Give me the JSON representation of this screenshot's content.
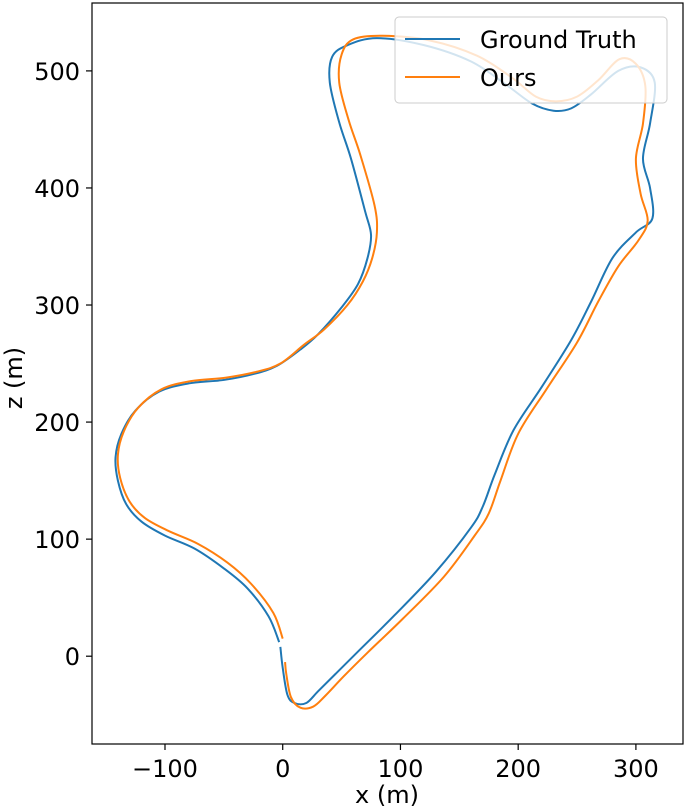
{
  "chart_data": {
    "type": "line",
    "title": "",
    "xlabel": "x (m)",
    "ylabel": "z (m)",
    "xlim": [
      -162,
      340
    ],
    "ylim": [
      -75,
      558
    ],
    "xticks": [
      -100,
      0,
      100,
      200,
      300
    ],
    "xtick_labels": [
      "−100",
      "0",
      "100",
      "200",
      "300"
    ],
    "yticks": [
      0,
      100,
      200,
      300,
      400,
      500
    ],
    "ytick_labels": [
      "0",
      "100",
      "200",
      "300",
      "400",
      "500"
    ],
    "grid": false,
    "legend": {
      "position": "top-right"
    },
    "series": [
      {
        "name": "Ground Truth",
        "color": "#1f77b4",
        "points": [
          [
            -2,
            8
          ],
          [
            0,
            -10
          ],
          [
            4,
            -33
          ],
          [
            10,
            -40
          ],
          [
            20,
            -40
          ],
          [
            30,
            -30
          ],
          [
            45,
            -15
          ],
          [
            65,
            5
          ],
          [
            95,
            35
          ],
          [
            130,
            72
          ],
          [
            160,
            110
          ],
          [
            170,
            128
          ],
          [
            180,
            155
          ],
          [
            196,
            193
          ],
          [
            220,
            230
          ],
          [
            245,
            270
          ],
          [
            262,
            303
          ],
          [
            280,
            340
          ],
          [
            300,
            362
          ],
          [
            314,
            374
          ],
          [
            312,
            400
          ],
          [
            306,
            425
          ],
          [
            312,
            455
          ],
          [
            316,
            490
          ],
          [
            304,
            503
          ],
          [
            285,
            500
          ],
          [
            262,
            480
          ],
          [
            245,
            468
          ],
          [
            230,
            466
          ],
          [
            212,
            472
          ],
          [
            190,
            488
          ],
          [
            160,
            508
          ],
          [
            120,
            522
          ],
          [
            80,
            528
          ],
          [
            55,
            522
          ],
          [
            42,
            512
          ],
          [
            40,
            490
          ],
          [
            48,
            456
          ],
          [
            58,
            425
          ],
          [
            70,
            380
          ],
          [
            75,
            360
          ],
          [
            72,
            340
          ],
          [
            64,
            318
          ],
          [
            50,
            298
          ],
          [
            30,
            275
          ],
          [
            15,
            262
          ],
          [
            -5,
            248
          ],
          [
            -25,
            241
          ],
          [
            -50,
            236
          ],
          [
            -80,
            233
          ],
          [
            -105,
            226
          ],
          [
            -125,
            210
          ],
          [
            -137,
            190
          ],
          [
            -142,
            170
          ],
          [
            -140,
            150
          ],
          [
            -133,
            130
          ],
          [
            -120,
            115
          ],
          [
            -100,
            103
          ],
          [
            -75,
            92
          ],
          [
            -50,
            75
          ],
          [
            -30,
            58
          ],
          [
            -12,
            34
          ],
          [
            -3,
            12
          ]
        ]
      },
      {
        "name": "Ours",
        "color": "#ff7f0e",
        "points": [
          [
            2,
            -5
          ],
          [
            3,
            -15
          ],
          [
            7,
            -35
          ],
          [
            15,
            -44
          ],
          [
            26,
            -43
          ],
          [
            36,
            -34
          ],
          [
            52,
            -17
          ],
          [
            72,
            3
          ],
          [
            102,
            32
          ],
          [
            137,
            68
          ],
          [
            163,
            103
          ],
          [
            175,
            122
          ],
          [
            185,
            150
          ],
          [
            200,
            190
          ],
          [
            224,
            228
          ],
          [
            250,
            268
          ],
          [
            268,
            303
          ],
          [
            285,
            333
          ],
          [
            302,
            355
          ],
          [
            310,
            372
          ],
          [
            304,
            395
          ],
          [
            300,
            425
          ],
          [
            306,
            455
          ],
          [
            308,
            487
          ],
          [
            300,
            506
          ],
          [
            286,
            510
          ],
          [
            268,
            492
          ],
          [
            250,
            478
          ],
          [
            232,
            474
          ],
          [
            215,
            478
          ],
          [
            195,
            494
          ],
          [
            165,
            513
          ],
          [
            125,
            526
          ],
          [
            85,
            530
          ],
          [
            60,
            527
          ],
          [
            50,
            514
          ],
          [
            48,
            490
          ],
          [
            56,
            458
          ],
          [
            66,
            428
          ],
          [
            78,
            385
          ],
          [
            80,
            362
          ],
          [
            76,
            340
          ],
          [
            68,
            320
          ],
          [
            55,
            300
          ],
          [
            35,
            279
          ],
          [
            18,
            266
          ],
          [
            -2,
            250
          ],
          [
            -22,
            243
          ],
          [
            -48,
            238
          ],
          [
            -78,
            235
          ],
          [
            -103,
            228
          ],
          [
            -123,
            212
          ],
          [
            -135,
            192
          ],
          [
            -140,
            172
          ],
          [
            -138,
            152
          ],
          [
            -130,
            132
          ],
          [
            -117,
            118
          ],
          [
            -97,
            107
          ],
          [
            -72,
            96
          ],
          [
            -47,
            80
          ],
          [
            -27,
            62
          ],
          [
            -8,
            37
          ],
          [
            0,
            15
          ]
        ]
      }
    ]
  }
}
